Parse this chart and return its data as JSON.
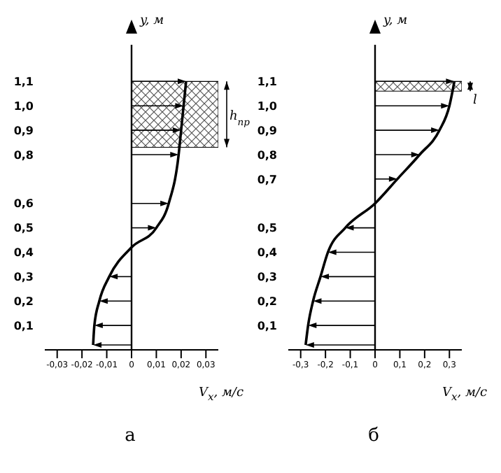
{
  "chart_data": [
    {
      "type": "line",
      "xlabel": "V$_{x}$, м/с",
      "ylabel": "y, м",
      "annotations": [
        "а",
        "h$_{пр}$"
      ],
      "series": [
        {
          "color": "#000000",
          "x": [
            -0.0155,
            -0.015,
            -0.013,
            -0.009,
            0,
            0.01,
            0.015,
            0.019,
            0.02,
            0.021,
            0.022
          ],
          "values": [
            0.02,
            0.1,
            0.2,
            0.3,
            0.42,
            0.5,
            0.6,
            0.8,
            0.9,
            1.0,
            1.1
          ]
        }
      ],
      "xlim": [
        -0.035,
        0.035
      ],
      "xticks": [
        {
          "value": -0.03,
          "label": "-0,03"
        },
        {
          "value": -0.02,
          "label": "-0,02"
        },
        {
          "value": -0.01,
          "label": "-0,01"
        },
        0,
        {
          "value": 0.01,
          "label": "0,01"
        },
        {
          "value": 0.02,
          "label": "0,02"
        },
        {
          "value": 0.03,
          "label": "0,03"
        }
      ],
      "ylim": [
        0,
        1.25
      ],
      "yticks": [
        {
          "value": 0.1,
          "label": "0,1"
        },
        {
          "value": 0.2,
          "label": "0,2"
        },
        {
          "value": 0.3,
          "label": "0,3"
        },
        {
          "value": 0.4,
          "label": "0,4"
        },
        {
          "value": 0.5,
          "label": "0,5"
        },
        {
          "value": 0.6,
          "label": "0,6"
        },
        {
          "value": 0.8,
          "label": "0,8"
        },
        {
          "value": 0.9,
          "label": "0,9"
        },
        {
          "value": 1.0,
          "label": "1,0"
        },
        {
          "value": 1.1,
          "label": "1,1"
        }
      ],
      "bands": [
        {
          "axis": "y",
          "from": 0.83,
          "to": 1.1
        }
      ],
      "ref_lines": [
        {
          "axis": "x",
          "value": 0
        }
      ]
    },
    {
      "type": "line",
      "xlabel": "V$_{x}$, м/с",
      "ylabel": "y, м",
      "annotations": [
        "б",
        "l"
      ],
      "series": [
        {
          "color": "#000000",
          "x": [
            -0.28,
            -0.27,
            -0.25,
            -0.22,
            -0.19,
            -0.12,
            0,
            0.09,
            0.18,
            0.26,
            0.3,
            0.32
          ],
          "values": [
            0.02,
            0.1,
            0.2,
            0.3,
            0.4,
            0.5,
            0.6,
            0.7,
            0.8,
            0.9,
            1.0,
            1.1
          ]
        }
      ],
      "xlim": [
        -0.35,
        0.35
      ],
      "xticks": [
        {
          "value": -0.3,
          "label": "-0,3"
        },
        {
          "value": -0.2,
          "label": "-0,2"
        },
        {
          "value": -0.1,
          "label": "-0,1"
        },
        0,
        {
          "value": 0.1,
          "label": "0,1"
        },
        {
          "value": 0.2,
          "label": "0,2"
        },
        {
          "value": 0.3,
          "label": "0,3"
        }
      ],
      "ylim": [
        0,
        1.25
      ],
      "yticks": [
        {
          "value": 0.1,
          "label": "0,1"
        },
        {
          "value": 0.2,
          "label": "0,2"
        },
        {
          "value": 0.3,
          "label": "0,3"
        },
        {
          "value": 0.4,
          "label": "0,4"
        },
        {
          "value": 0.5,
          "label": "0,5"
        },
        {
          "value": 0.7,
          "label": "0,7"
        },
        {
          "value": 0.8,
          "label": "0,8"
        },
        {
          "value": 0.9,
          "label": "0,9"
        },
        {
          "value": 1.0,
          "label": "1,0"
        },
        {
          "value": 1.1,
          "label": "1,1"
        }
      ],
      "bands": [
        {
          "axis": "y",
          "from": 1.06,
          "to": 1.1
        }
      ],
      "ref_lines": [
        {
          "axis": "x",
          "value": 0
        }
      ]
    }
  ]
}
